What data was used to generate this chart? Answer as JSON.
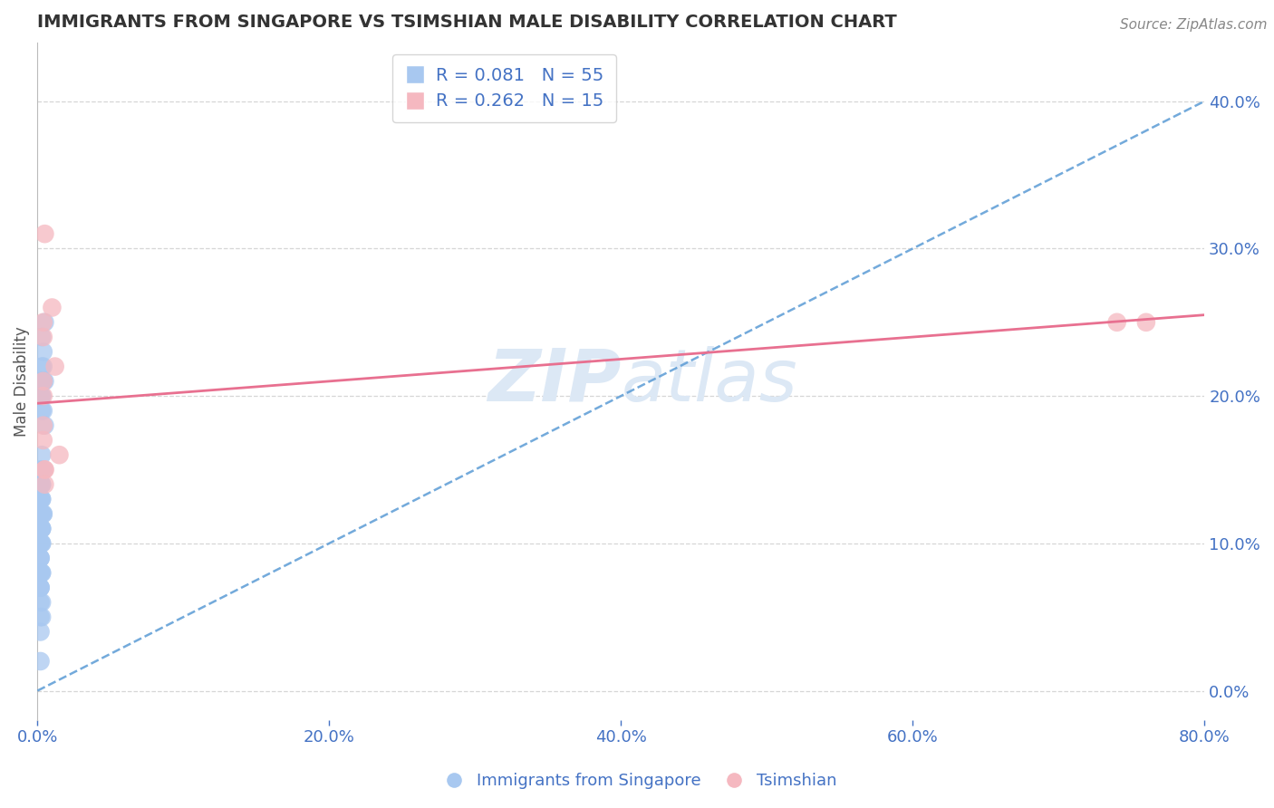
{
  "title": "IMMIGRANTS FROM SINGAPORE VS TSIMSHIAN MALE DISABILITY CORRELATION CHART",
  "source_text": "Source: ZipAtlas.com",
  "ylabel": "Male Disability",
  "xlim": [
    0.0,
    0.8
  ],
  "ylim": [
    -0.02,
    0.44
  ],
  "yticks": [
    0.0,
    0.1,
    0.2,
    0.3,
    0.4
  ],
  "xticks": [
    0.0,
    0.2,
    0.4,
    0.6,
    0.8
  ],
  "blue_R": 0.081,
  "blue_N": 55,
  "pink_R": 0.262,
  "pink_N": 15,
  "blue_color": "#a8c8f0",
  "pink_color": "#f5b8c0",
  "blue_line_color": "#5b9bd5",
  "pink_line_color": "#e87090",
  "axis_color": "#4472c4",
  "grid_color": "#cccccc",
  "title_color": "#333333",
  "watermark_color": "#dce8f5",
  "blue_x": [
    0.003,
    0.005,
    0.004,
    0.003,
    0.005,
    0.004,
    0.003,
    0.004,
    0.003,
    0.005,
    0.004,
    0.003,
    0.004,
    0.003,
    0.002,
    0.004,
    0.003,
    0.002,
    0.003,
    0.004,
    0.002,
    0.003,
    0.002,
    0.003,
    0.002,
    0.003,
    0.002,
    0.003,
    0.002,
    0.003,
    0.002,
    0.003,
    0.002,
    0.003,
    0.002,
    0.003,
    0.002,
    0.002,
    0.003,
    0.002,
    0.002,
    0.002,
    0.003,
    0.002,
    0.002,
    0.002,
    0.002,
    0.003,
    0.002,
    0.004,
    0.002,
    0.003,
    0.002,
    0.003,
    0.002
  ],
  "blue_y": [
    0.24,
    0.25,
    0.23,
    0.22,
    0.21,
    0.22,
    0.2,
    0.21,
    0.19,
    0.18,
    0.21,
    0.2,
    0.19,
    0.21,
    0.2,
    0.15,
    0.16,
    0.14,
    0.13,
    0.12,
    0.15,
    0.14,
    0.13,
    0.14,
    0.13,
    0.13,
    0.12,
    0.11,
    0.12,
    0.11,
    0.11,
    0.12,
    0.1,
    0.11,
    0.1,
    0.1,
    0.09,
    0.11,
    0.1,
    0.09,
    0.08,
    0.09,
    0.08,
    0.07,
    0.08,
    0.07,
    0.06,
    0.08,
    0.07,
    0.12,
    0.05,
    0.06,
    0.04,
    0.05,
    0.02
  ],
  "pink_x": [
    0.004,
    0.004,
    0.005,
    0.01,
    0.012,
    0.004,
    0.005,
    0.004,
    0.005,
    0.015,
    0.74,
    0.76,
    0.004,
    0.005,
    0.004
  ],
  "pink_y": [
    0.25,
    0.24,
    0.31,
    0.26,
    0.22,
    0.2,
    0.15,
    0.18,
    0.15,
    0.16,
    0.25,
    0.25,
    0.17,
    0.14,
    0.21
  ],
  "blue_trend_x0": 0.0,
  "blue_trend_x1": 0.8,
  "blue_trend_y0": 0.0,
  "blue_trend_y1": 0.4,
  "pink_trend_x0": 0.0,
  "pink_trend_x1": 0.8,
  "pink_trend_y0": 0.195,
  "pink_trend_y1": 0.255,
  "legend_label_blue": "R = 0.081   N = 55",
  "legend_label_pink": "R = 0.262   N = 15",
  "bottom_legend_blue": "Immigrants from Singapore",
  "bottom_legend_pink": "Tsimshian"
}
